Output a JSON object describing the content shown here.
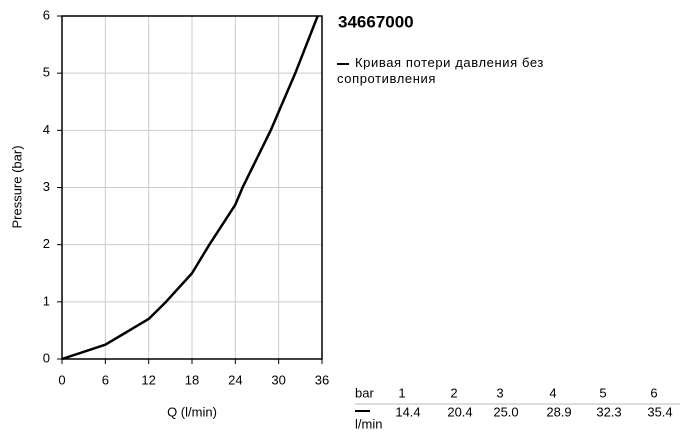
{
  "chart_data": {
    "type": "line",
    "title": "34667000",
    "x_label": "Q (l/min)",
    "y_label": "Pressure (bar)",
    "x": [
      0,
      6,
      12,
      14.4,
      18,
      20.4,
      24,
      25.0,
      28.9,
      32.3,
      35.4
    ],
    "series": [
      {
        "name": "Кривая потери давления без сопротивления",
        "color": "#000000",
        "values": [
          0,
          0.25,
          0.7,
          1,
          1.5,
          2,
          2.7,
          3,
          4,
          5,
          6
        ]
      }
    ],
    "xlim": [
      0,
      36
    ],
    "xticks": [
      0,
      6,
      12,
      18,
      24,
      30,
      36
    ],
    "ylim": [
      0,
      6
    ],
    "yticks": [
      0,
      1,
      2,
      3,
      4,
      5,
      6
    ],
    "grid": true
  },
  "table": {
    "pressure_label": "bar",
    "flow_label": "l/min",
    "pressures": [
      "1",
      "2",
      "3",
      "4",
      "5",
      "6"
    ],
    "flows": [
      "14.4",
      "20.4",
      "25.0",
      "28.9",
      "32.3",
      "35.4"
    ]
  }
}
